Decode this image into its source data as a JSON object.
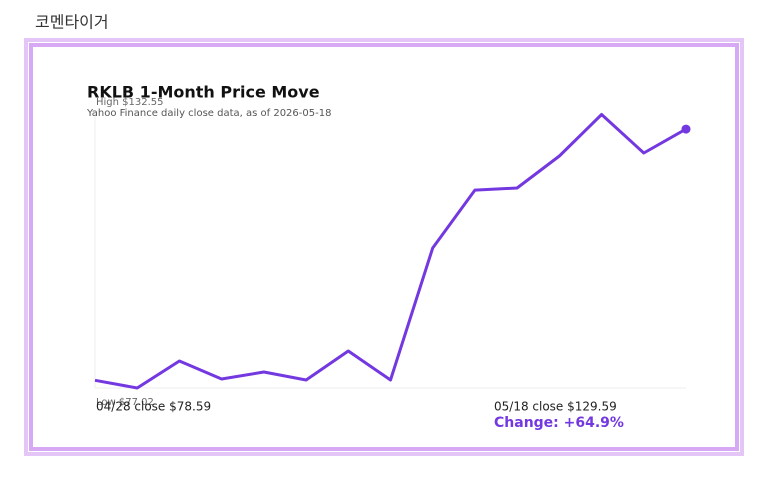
{
  "page_title": "코멘타이거",
  "chart_data": {
    "type": "line",
    "title": "RKLB 1-Month Price Move",
    "subtitle": "Yahoo Finance daily close data, as of 2026-05-18",
    "high_label": "High $132.55",
    "low_label": "Low $77.02",
    "start_label": "04/28 close $78.59",
    "end_label": "05/18 close $129.59",
    "change_label": "Change: +64.9%",
    "values": [
      78.59,
      77.02,
      82.5,
      78.85,
      80.27,
      78.64,
      84.53,
      78.64,
      105.44,
      117.21,
      117.62,
      124.12,
      132.55,
      124.73,
      129.59
    ],
    "color": "#7338e0",
    "ylim": [
      77.02,
      132.55
    ]
  }
}
